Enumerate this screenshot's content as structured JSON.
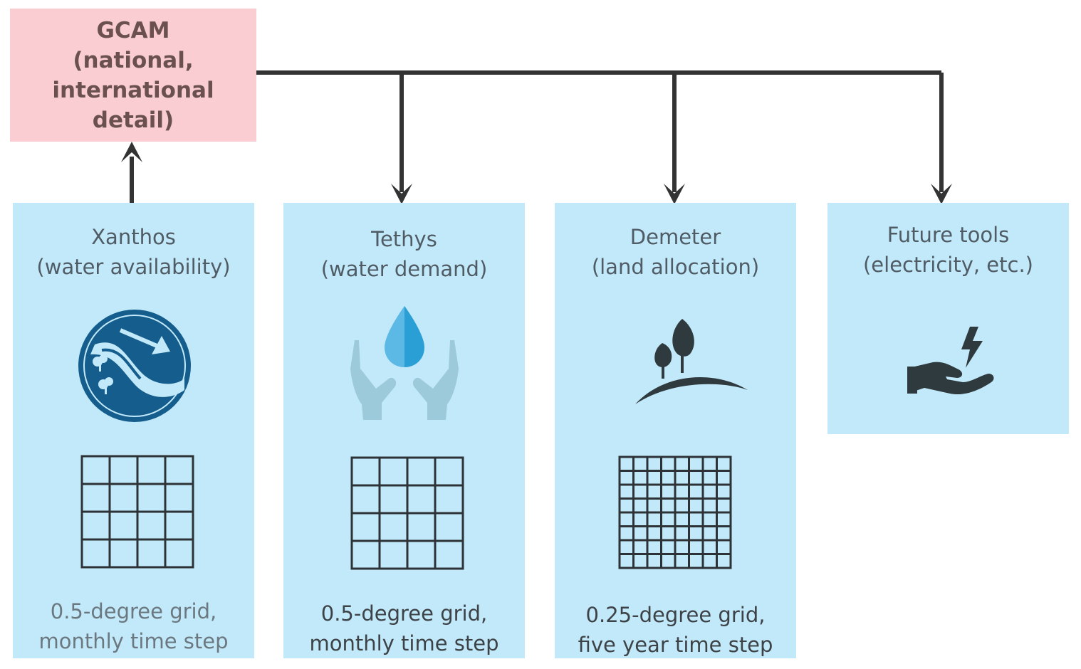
{
  "gcam": {
    "lines": [
      "GCAM",
      "(national,",
      "international",
      "detail)"
    ]
  },
  "boxes": [
    {
      "title": [
        "Xanthos",
        "(water availability)"
      ],
      "footer": [
        "0.5-degree grid,",
        "monthly time step"
      ],
      "icon": "river-icon",
      "grid_cells": 4
    },
    {
      "title": [
        "Tethys",
        "(water demand)"
      ],
      "footer": [
        "0.5-degree grid,",
        "monthly time step"
      ],
      "icon": "hands-water-drop-icon",
      "grid_cells": 4
    },
    {
      "title": [
        "Demeter",
        "(land allocation)"
      ],
      "footer": [
        "0.25-degree grid,",
        "five year time step"
      ],
      "icon": "trees-hill-icon",
      "grid_cells": 8
    },
    {
      "title": [
        "Future tools",
        "(electricity, etc.)"
      ],
      "footer": [],
      "icon": "hand-lightning-icon",
      "grid_cells": 0
    }
  ],
  "colors": {
    "gcam_fill": "#f9cdd1",
    "box_fill": "#c2e9f9",
    "connector": "#333333",
    "river_icon": "#145d8c",
    "hands_icon": "#9ccadb",
    "drop_icon": "#2a9fd6",
    "dark_icon": "#2f3a3e"
  }
}
